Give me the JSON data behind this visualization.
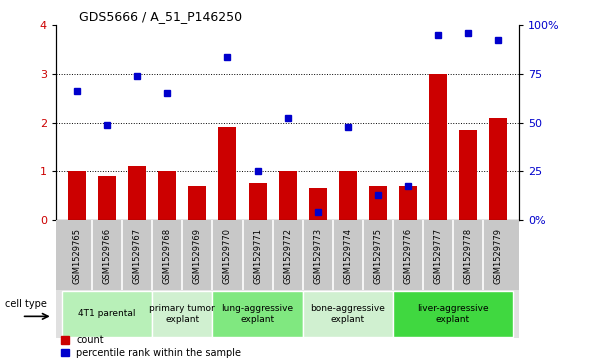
{
  "title": "GDS5666 / A_51_P146250",
  "samples": [
    "GSM1529765",
    "GSM1529766",
    "GSM1529767",
    "GSM1529768",
    "GSM1529769",
    "GSM1529770",
    "GSM1529771",
    "GSM1529772",
    "GSM1529773",
    "GSM1529774",
    "GSM1529775",
    "GSM1529776",
    "GSM1529777",
    "GSM1529778",
    "GSM1529779"
  ],
  "counts": [
    1.0,
    0.9,
    1.1,
    1.0,
    0.7,
    1.9,
    0.75,
    1.0,
    0.65,
    1.0,
    0.7,
    0.7,
    3.0,
    1.85,
    2.1
  ],
  "percentile_vals": [
    2.65,
    1.95,
    2.95,
    2.6,
    null,
    3.35,
    1.0,
    2.1,
    0.15,
    1.9,
    0.5,
    0.7,
    3.8,
    3.85,
    3.7
  ],
  "bar_color": "#cc0000",
  "dot_color": "#0000cc",
  "ylim_left": [
    0,
    4
  ],
  "ylim_right": [
    0,
    100
  ],
  "yticks_left": [
    0,
    1,
    2,
    3,
    4
  ],
  "yticks_right": [
    0,
    25,
    50,
    75,
    100
  ],
  "ytick_labels_right": [
    "0",
    "25",
    "50",
    "75",
    "100%"
  ],
  "groups": [
    {
      "label": "4T1 parental",
      "start": 0,
      "end": 2,
      "color": "#b8f0b8"
    },
    {
      "label": "primary tumor\nexplant",
      "start": 3,
      "end": 4,
      "color": "#d0f0d0"
    },
    {
      "label": "lung-aggressive\nexplant",
      "start": 5,
      "end": 7,
      "color": "#80e880"
    },
    {
      "label": "bone-aggressive\nexplant",
      "start": 8,
      "end": 10,
      "color": "#d0f0d0"
    },
    {
      "label": "liver-aggressive\nexplant",
      "start": 11,
      "end": 14,
      "color": "#40d840"
    }
  ],
  "cell_type_label": "cell type",
  "legend_count_label": "count",
  "legend_percentile_label": "percentile rank within the sample",
  "bg_color": "#ffffff",
  "tick_label_color_left": "#cc0000",
  "tick_label_color_right": "#0000cc",
  "xtick_bg_color": "#c8c8c8",
  "group_bg_color": "#e8e8e8"
}
